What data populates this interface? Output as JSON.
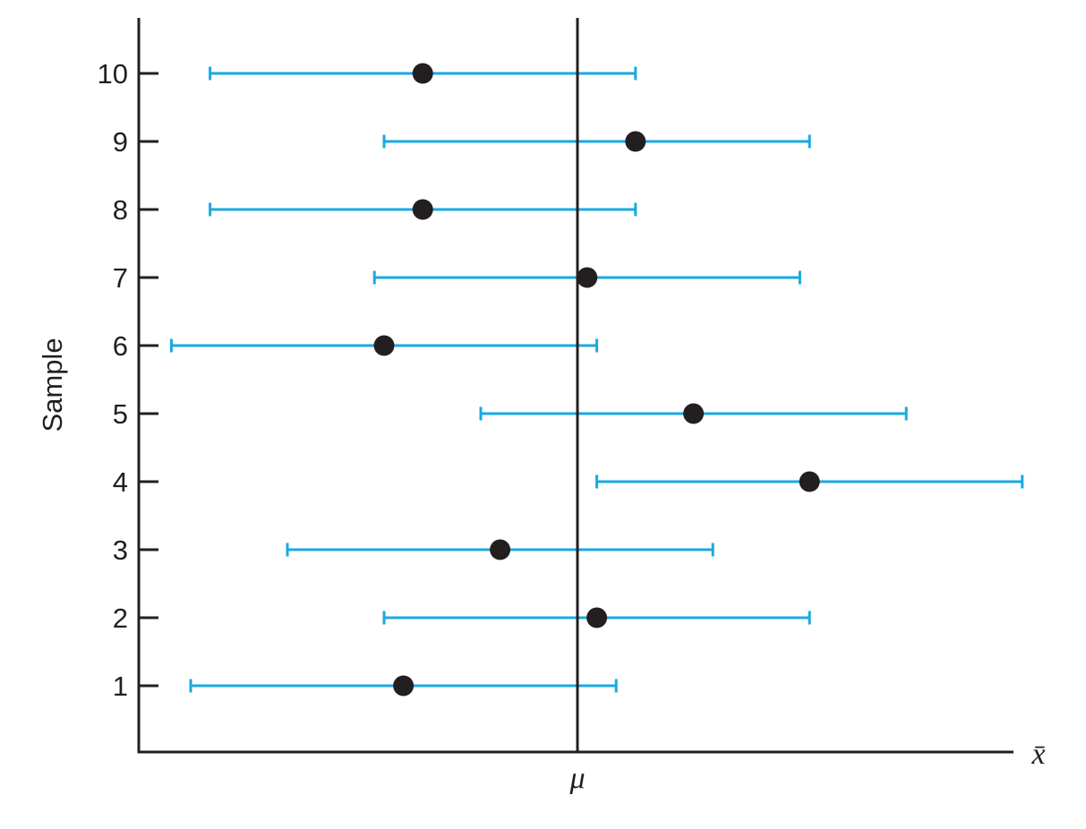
{
  "chart_data": {
    "type": "scatter",
    "subtype": "confidence-interval-plot",
    "ylabel": "Sample",
    "xlabel": "x̄",
    "center_label": "μ",
    "colors": {
      "interval": "#1aa9e1",
      "point": "#231f20",
      "axis": "#231f20"
    },
    "xlim": [
      -100,
      100
    ],
    "ylim": [
      0,
      10.8
    ],
    "mu": 0,
    "ticks_y": [
      "1",
      "2",
      "3",
      "4",
      "5",
      "6",
      "7",
      "8",
      "9",
      "10"
    ],
    "samples": [
      {
        "sample": 1,
        "mean": -36,
        "lower": -80,
        "upper": 8
      },
      {
        "sample": 2,
        "mean": 4,
        "lower": -40,
        "upper": 48
      },
      {
        "sample": 3,
        "mean": -16,
        "lower": -60,
        "upper": 28
      },
      {
        "sample": 4,
        "mean": 48,
        "lower": 4,
        "upper": 92
      },
      {
        "sample": 5,
        "mean": 24,
        "lower": -20,
        "upper": 68
      },
      {
        "sample": 6,
        "mean": -40,
        "lower": -84,
        "upper": 4
      },
      {
        "sample": 7,
        "mean": 2,
        "lower": -42,
        "upper": 46
      },
      {
        "sample": 8,
        "mean": -32,
        "lower": -76,
        "upper": 12
      },
      {
        "sample": 9,
        "mean": 12,
        "lower": -40,
        "upper": 48
      },
      {
        "sample": 10,
        "mean": -32,
        "lower": -76,
        "upper": 12
      }
    ]
  }
}
